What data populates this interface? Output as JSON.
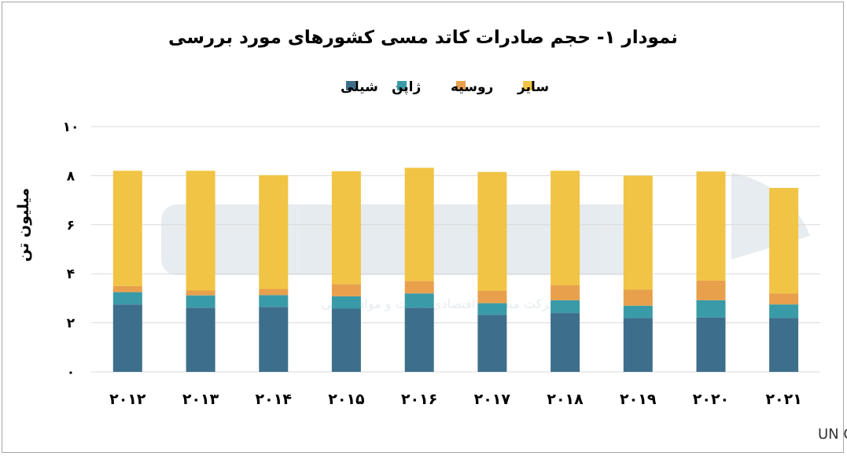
{
  "chart_data": {
    "type": "bar",
    "stacked": true,
    "title": "نمودار ۱- حجم صادرات کاتد مسی کشورهای مورد بررسی",
    "ylabel": "میلیون تن",
    "xlabel": "",
    "ylim": [
      0,
      10
    ],
    "yticks": [
      "۰",
      "۲",
      "۴",
      "۶",
      "۸",
      "۱۰"
    ],
    "grid": true,
    "legend_position": "top",
    "categories": [
      "۲۰۱۲",
      "۲۰۱۳",
      "۲۰۱۴",
      "۲۰۱۵",
      "۲۰۱۶",
      "۲۰۱۷",
      "۲۰۱۸",
      "۲۰۱۹",
      "۲۰۲۰",
      "۲۰۲۱"
    ],
    "series": [
      {
        "name": "شیلی",
        "color": "#3d6f8c",
        "values": [
          2.75,
          2.62,
          2.65,
          2.58,
          2.62,
          2.32,
          2.4,
          2.2,
          2.22,
          2.2
        ]
      },
      {
        "name": "ژاپن",
        "color": "#3a9ba8",
        "values": [
          0.5,
          0.5,
          0.48,
          0.5,
          0.58,
          0.48,
          0.52,
          0.5,
          0.7,
          0.55
        ]
      },
      {
        "name": "روسیه",
        "color": "#e8a04c",
        "values": [
          0.25,
          0.2,
          0.25,
          0.5,
          0.5,
          0.5,
          0.62,
          0.65,
          0.8,
          0.45
        ]
      },
      {
        "name": "سایر",
        "color": "#f1c445",
        "values": [
          4.7,
          4.88,
          4.64,
          4.6,
          4.62,
          4.85,
          4.66,
          4.65,
          4.45,
          4.3
        ]
      }
    ]
  },
  "source": "منبع: UN Comtrade",
  "watermark_text": "شرکت مشاوره اقتصادی فلزات و مواد معدنی"
}
